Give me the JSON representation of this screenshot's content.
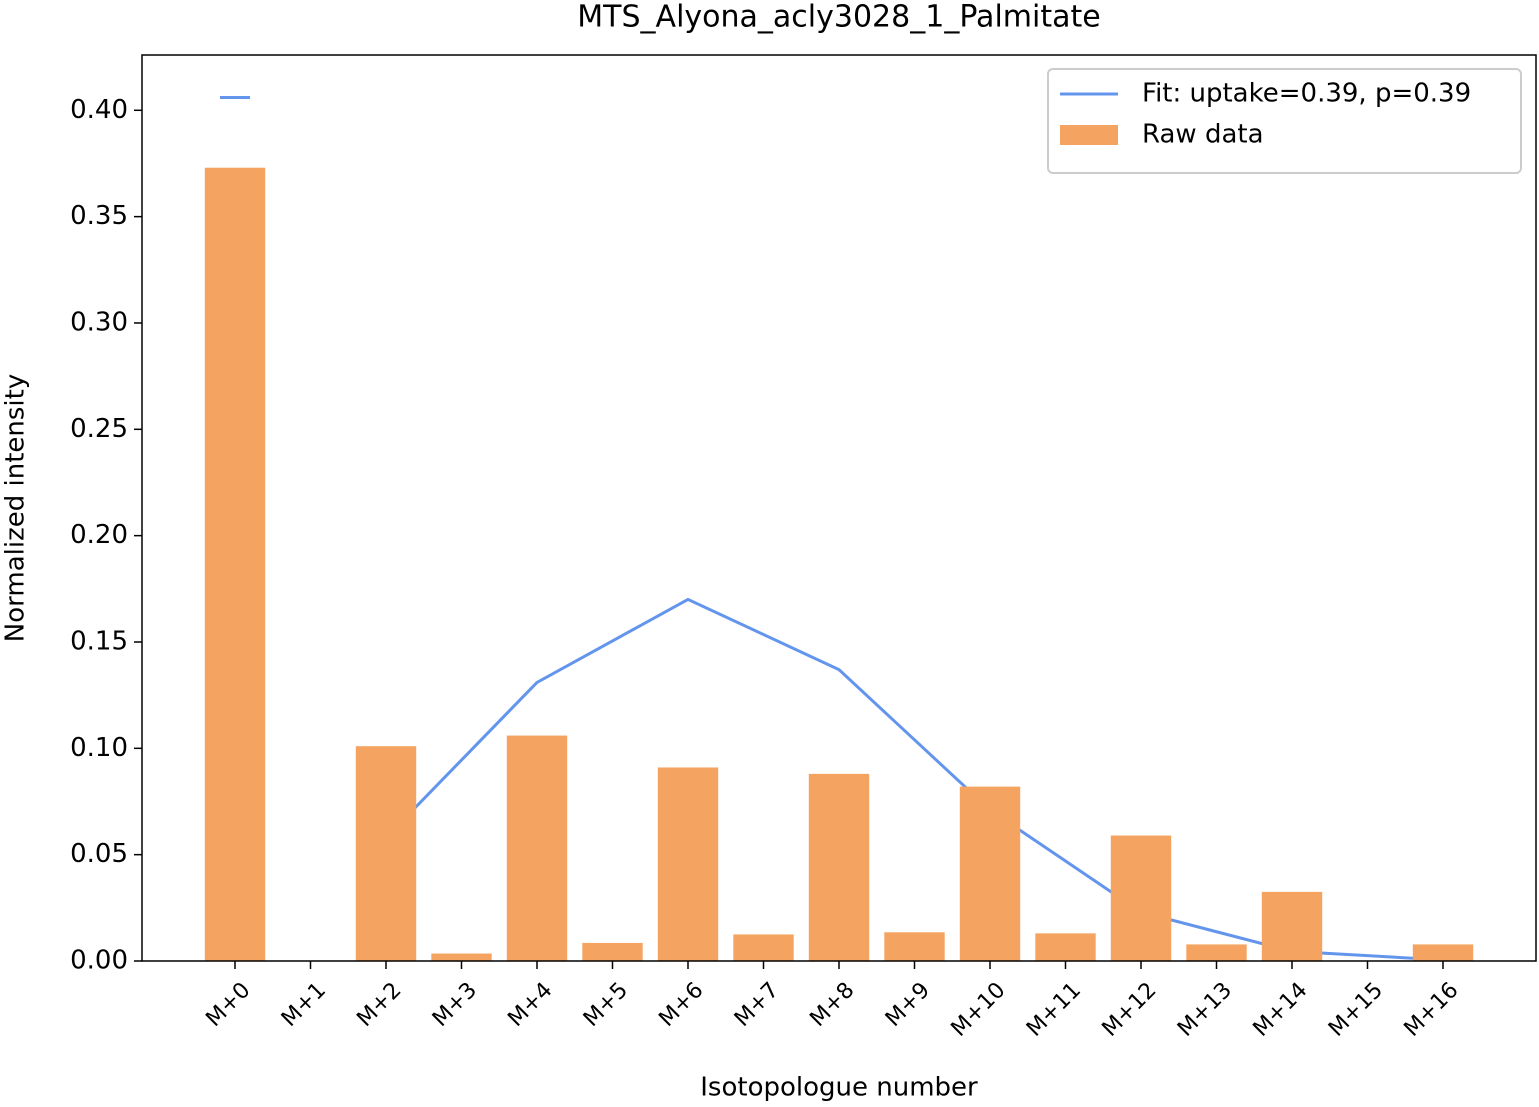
{
  "chart_data": {
    "type": "bar",
    "title": "MTS_Alyona_acly3028_1_Palmitate",
    "x_label": "Isotopologue number",
    "y_label": "Normalized intensity",
    "categories": [
      "M+0",
      "M+1",
      "M+2",
      "M+3",
      "M+4",
      "M+5",
      "M+6",
      "M+7",
      "M+8",
      "M+9",
      "M+10",
      "M+11",
      "M+12",
      "M+13",
      "M+14",
      "M+15",
      "M+16"
    ],
    "series": [
      {
        "name": "Fit: uptake=0.39, p=0.39",
        "type": "line",
        "color": "#6495ed",
        "values": [
          null,
          null,
          0.058,
          0.0945,
          0.131,
          0.1505,
          0.17,
          0.1535,
          0.137,
          0.104,
          0.071,
          0.047,
          0.023,
          0.01375,
          0.0045,
          0.0025,
          0.0005
        ]
      },
      {
        "name": "Raw data",
        "type": "bar",
        "color": "#f4a460",
        "values": [
          0.373,
          0,
          0.101,
          0.0035,
          0.106,
          0.0085,
          0.091,
          0.0125,
          0.088,
          0.0135,
          0.082,
          0.013,
          0.059,
          0.0078,
          0.0325,
          0,
          0.0078
        ]
      },
      {
        "type": "dash",
        "color": "#6495ed",
        "values": [
          0.406,
          null,
          null,
          null,
          null,
          null,
          null,
          null,
          null,
          null,
          null,
          null,
          null,
          null,
          null,
          null,
          null
        ]
      }
    ],
    "ylim": [
      0,
      0.426
    ],
    "yticks": [
      {
        "value": 0,
        "label": "0.00"
      },
      {
        "value": 0.05,
        "label": "0.05"
      },
      {
        "value": 0.1,
        "label": "0.10"
      },
      {
        "value": 0.15,
        "label": "0.15"
      },
      {
        "value": 0.2,
        "label": "0.20"
      },
      {
        "value": 0.25,
        "label": "0.25"
      },
      {
        "value": 0.3,
        "label": "0.30"
      },
      {
        "value": 0.35,
        "label": "0.35"
      },
      {
        "value": 0.4,
        "label": "0.40"
      }
    ],
    "grid": false,
    "legend": "upper right"
  }
}
